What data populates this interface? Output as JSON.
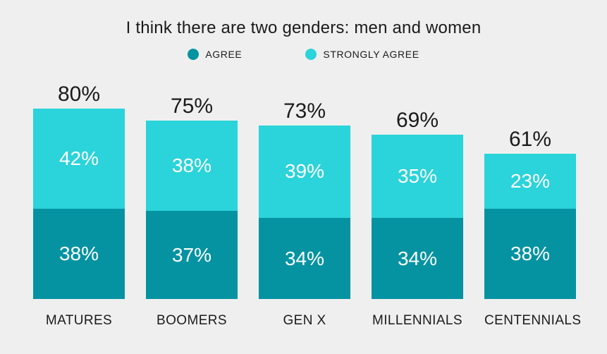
{
  "title": "I think there are two genders: men and women",
  "colors": {
    "background": "#efefef",
    "text": "#1b1b1b",
    "agree": "#0593a2",
    "strongly_agree": "#2bd3da",
    "label_on_bar": "#ffffff"
  },
  "legend": [
    {
      "label": "AGREE",
      "color": "#0593a2"
    },
    {
      "label": "STRONGLY AGREE",
      "color": "#2bd3da"
    }
  ],
  "chart_data": {
    "type": "bar",
    "stacked": true,
    "title": "I think there are two genders: men and women",
    "categories": [
      "MATURES",
      "BOOMERS",
      "GEN X",
      "MILLENNIALS",
      "CENTENNIALS"
    ],
    "series": [
      {
        "name": "AGREE",
        "color": "#0593a2",
        "values": [
          38,
          37,
          34,
          34,
          38
        ]
      },
      {
        "name": "STRONGLY AGREE",
        "color": "#2bd3da",
        "values": [
          42,
          38,
          39,
          35,
          23
        ]
      }
    ],
    "totals": [
      80,
      75,
      73,
      69,
      61
    ],
    "value_suffix": "%",
    "ylim": [
      0,
      100
    ],
    "grid": false,
    "legend_position": "top",
    "value_labels": "inside-segments-and-totals-above"
  }
}
